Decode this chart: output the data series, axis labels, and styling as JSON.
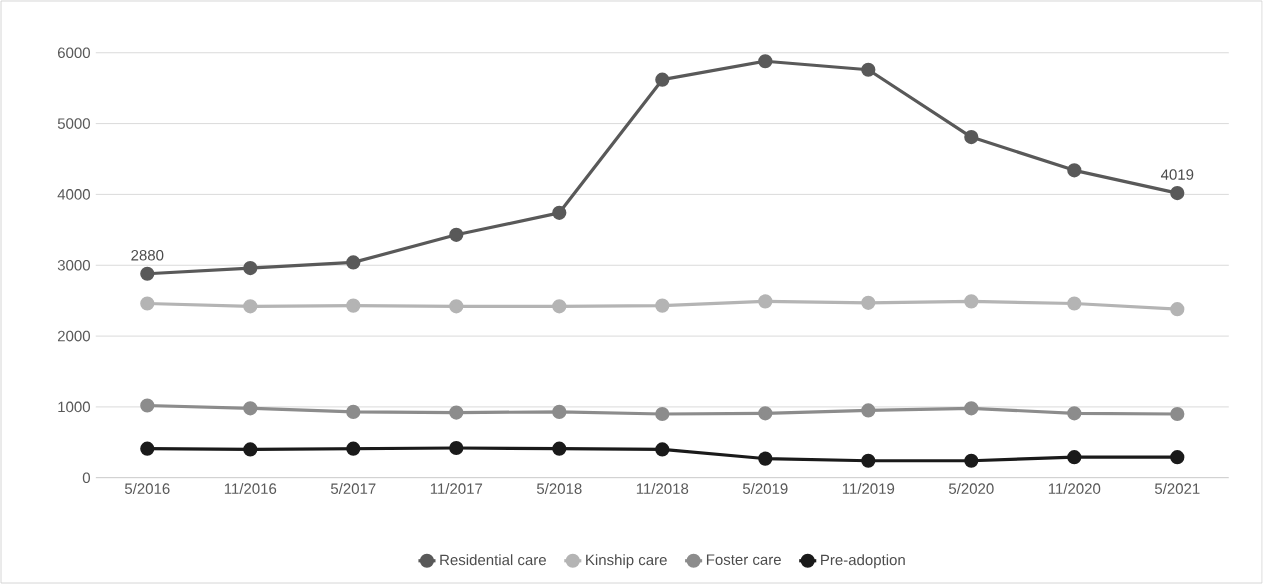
{
  "chart_data": {
    "type": "line",
    "categories": [
      "5/2016",
      "11/2016",
      "5/2017",
      "11/2017",
      "5/2018",
      "11/2018",
      "5/2019",
      "11/2019",
      "5/2020",
      "11/2020",
      "5/2021"
    ],
    "series": [
      {
        "name": "Residential care",
        "color": "#595959",
        "values": [
          2880,
          2960,
          3040,
          3430,
          3740,
          5620,
          5880,
          5760,
          4810,
          4340,
          4019
        ],
        "value_labels": [
          "2880",
          null,
          null,
          null,
          null,
          null,
          null,
          null,
          null,
          null,
          "4019"
        ]
      },
      {
        "name": "Kinship care",
        "color": "#b4b4b4",
        "values": [
          2460,
          2420,
          2430,
          2420,
          2420,
          2430,
          2490,
          2470,
          2490,
          2460,
          2380
        ]
      },
      {
        "name": "Foster care",
        "color": "#8c8c8c",
        "values": [
          1020,
          980,
          930,
          920,
          930,
          900,
          910,
          950,
          980,
          910,
          900
        ]
      },
      {
        "name": "Pre-adoption",
        "color": "#1a1a1a",
        "values": [
          410,
          400,
          410,
          420,
          410,
          400,
          270,
          240,
          240,
          290,
          290
        ]
      }
    ],
    "ylim": [
      0,
      6000
    ],
    "yticks": [
      0,
      1000,
      2000,
      3000,
      4000,
      5000,
      6000
    ],
    "grid": "y",
    "legend": "bottom",
    "marker": "circle",
    "line_style": "solid"
  }
}
